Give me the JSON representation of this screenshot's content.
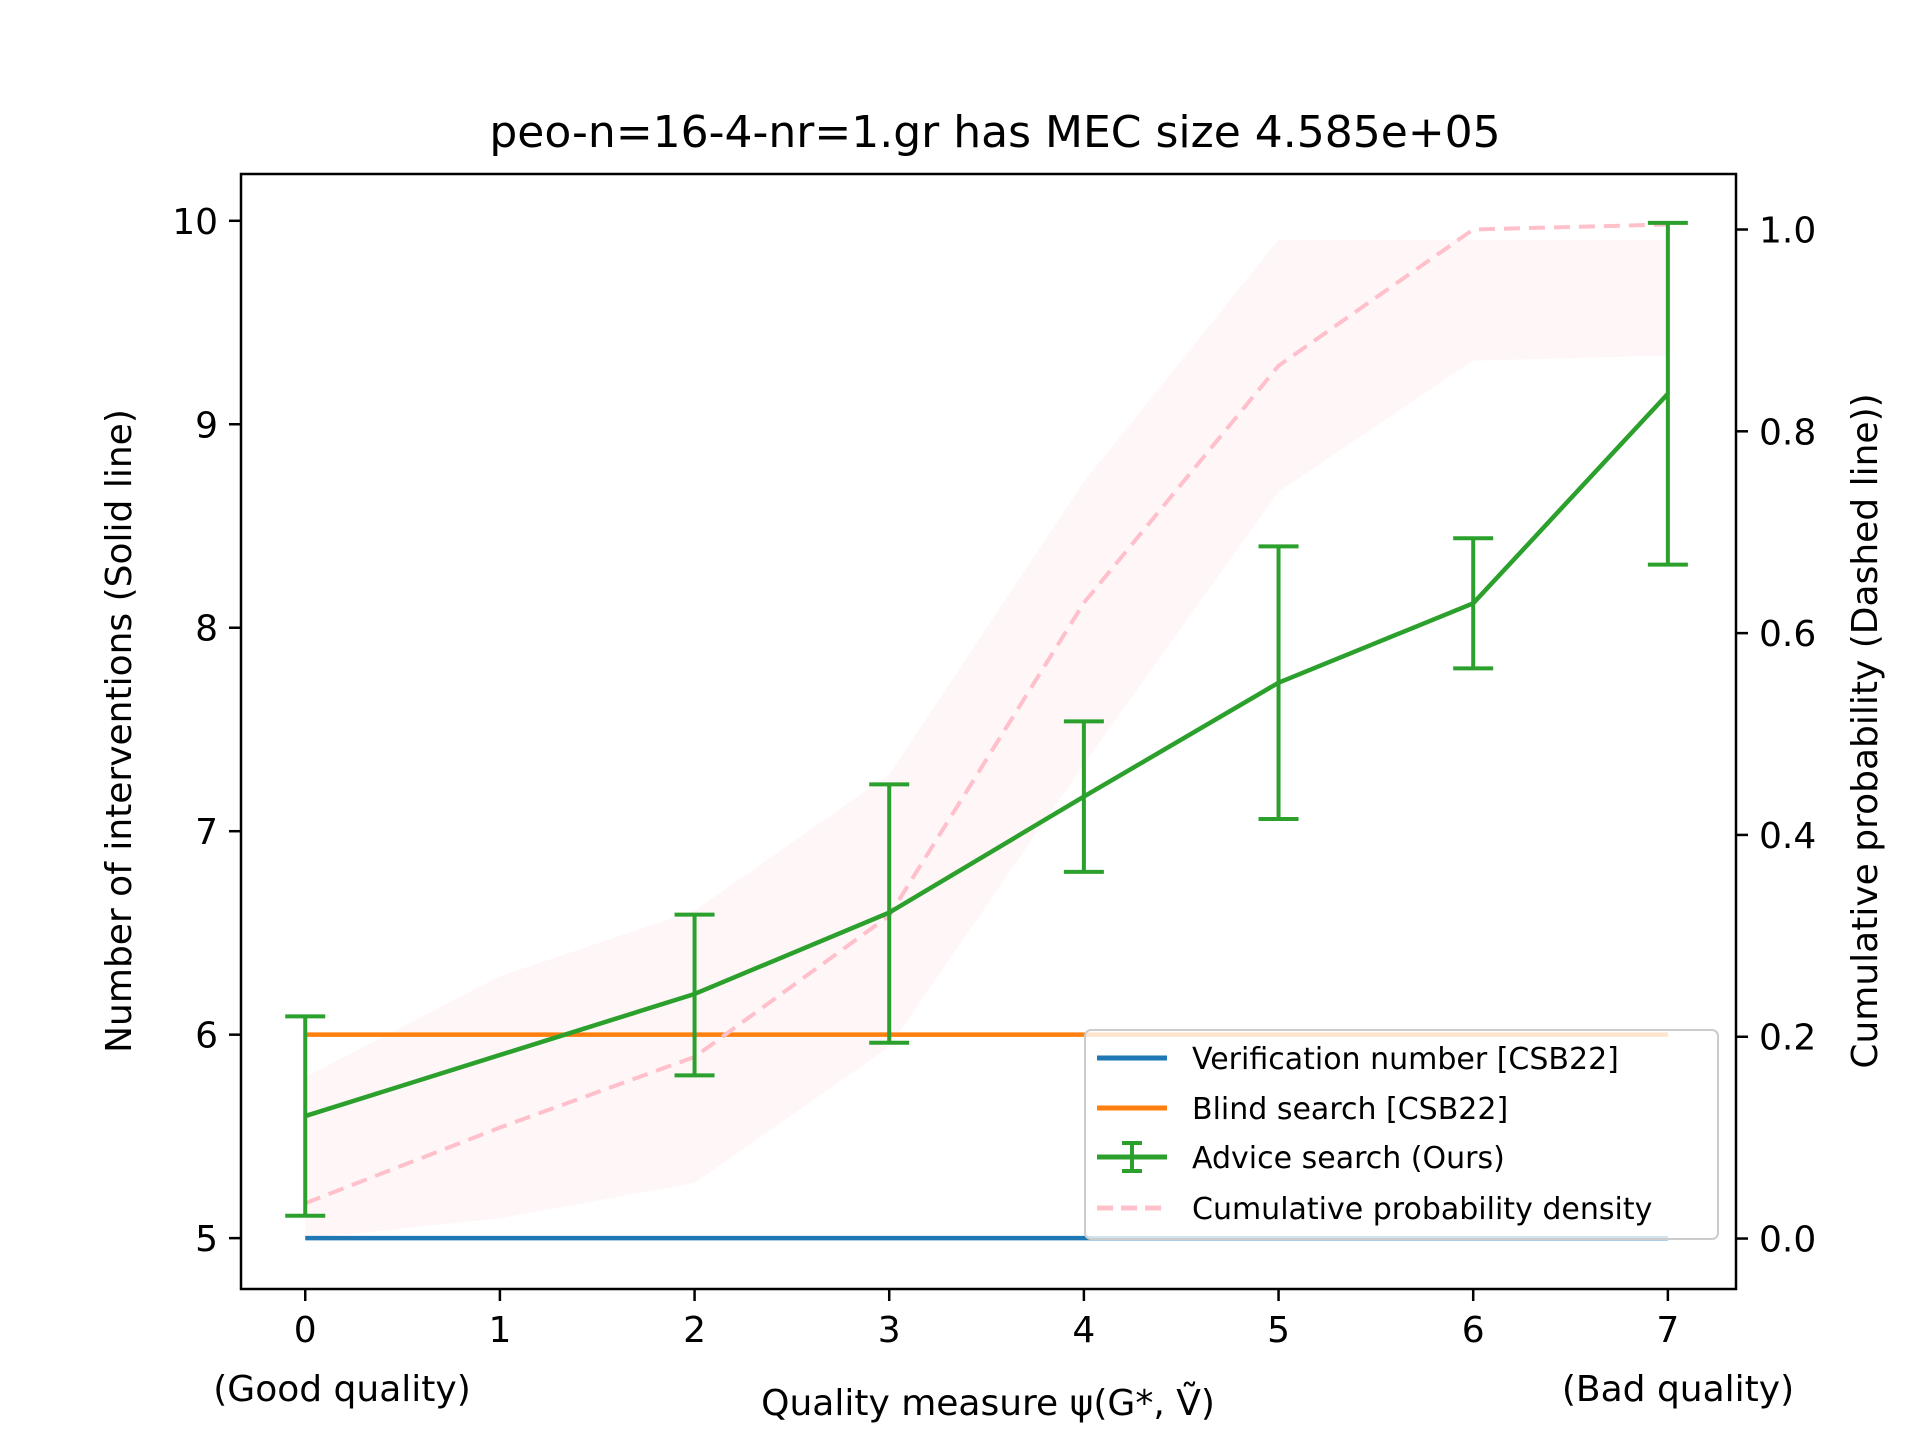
{
  "chart_data": {
    "type": "line",
    "title": "peo-n=16-4-nr=1.gr has MEC size 4.585e+05",
    "xlabel": "Quality measure ψ(G*, Ṽ)",
    "ylabel": "Number of interventions (Solid line)",
    "y2label": "Cumulative probability (Dashed line))",
    "x_note_left": "(Good quality)",
    "x_note_right": "(Bad quality)",
    "x_ticks": [
      "0",
      "1",
      "2",
      "3",
      "4",
      "5",
      "6",
      "7"
    ],
    "y_ticks": [
      "5",
      "6",
      "7",
      "8",
      "9",
      "10"
    ],
    "y2_ticks": [
      "0.0",
      "0.2",
      "0.4",
      "0.6",
      "0.8",
      "1.0"
    ],
    "xlim": [
      -0.33,
      7.35
    ],
    "ylim": [
      4.75,
      10.23
    ],
    "y2lim": [
      -0.05,
      1.055
    ],
    "legend_position": "lower-right",
    "series": [
      {
        "name": "Verification number [CSB22]",
        "axis": "left",
        "style": "solid",
        "color": "#1f77b4",
        "x": [
          0,
          1,
          2,
          3,
          4,
          5,
          6,
          7
        ],
        "values": [
          5,
          5,
          5,
          5,
          5,
          5,
          5,
          5
        ]
      },
      {
        "name": "Blind search [CSB22]",
        "axis": "left",
        "style": "solid",
        "color": "#ff7f0e",
        "x": [
          0,
          1,
          2,
          3,
          4,
          5,
          6,
          7
        ],
        "values": [
          6,
          6,
          6,
          6,
          6,
          6,
          6,
          6
        ]
      },
      {
        "name": "Advice search (Ours)",
        "axis": "left",
        "style": "errorbar",
        "color": "#2ca02c",
        "x": [
          0,
          2,
          3,
          4,
          5,
          6,
          7
        ],
        "values": [
          5.6,
          6.2,
          6.6,
          7.17,
          7.73,
          8.12,
          9.15
        ],
        "err_low": [
          5.11,
          5.8,
          5.96,
          6.8,
          7.06,
          7.8,
          8.31
        ],
        "err_high": [
          6.09,
          6.59,
          7.23,
          7.54,
          8.4,
          8.44,
          9.99
        ]
      },
      {
        "name": "Cumulative probability density",
        "axis": "right",
        "style": "dashed",
        "color": "#ffc0cb",
        "x": [
          0,
          1,
          2,
          3,
          4,
          5,
          6,
          7
        ],
        "values": [
          0.035,
          0.11,
          0.18,
          0.32,
          0.63,
          0.865,
          1.0,
          1.005
        ],
        "band_low": [
          0.0,
          0.02,
          0.055,
          0.19,
          0.47,
          0.74,
          0.87,
          0.875
        ],
        "band_high": [
          0.16,
          0.26,
          0.325,
          0.46,
          0.75,
          0.99,
          0.99,
          0.99
        ]
      }
    ]
  }
}
